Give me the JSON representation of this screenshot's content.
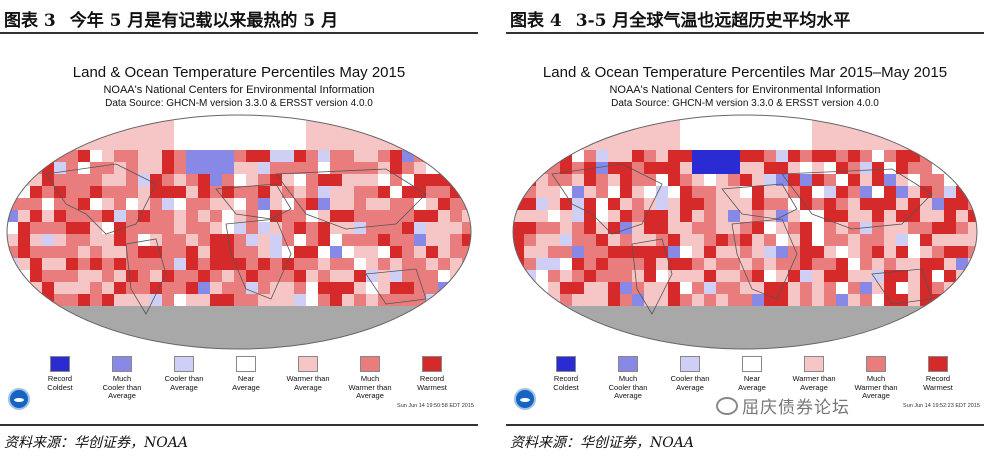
{
  "panels": [
    {
      "caption_num": "图表 3",
      "caption_text": "今年 5 月是有记载以来最热的 5 月",
      "title": "Land & Ocean Temperature Percentiles May 2015",
      "subtitle": "NOAA's National Centers for Environmental Information",
      "source_line": "Data Source: GHCN-M version 3.3.0 & ERSST version 4.0.0",
      "timestamp": "Sun Jun 14 19:50:58 EDT 2015",
      "footer_source": "资料来源：华创证券，NOAA"
    },
    {
      "caption_num": "图表 4",
      "caption_text": "3-5 月全球气温也远超历史平均水平",
      "title": "Land & Ocean Temperature Percentiles Mar 2015–May 2015",
      "subtitle": "NOAA's National Centers for Environmental Information",
      "source_line": "Data Source: GHCN-M version 3.3.0 & ERSST version 4.0.0",
      "timestamp": "Sun Jun 14 19:52:23 EDT 2015",
      "footer_source": "资料来源：华创证券，NOAA"
    }
  ],
  "legend": [
    {
      "label": "Record\nColdest",
      "color": "#2b2bd4"
    },
    {
      "label": "Much\nCooler than\nAverage",
      "color": "#8888e6"
    },
    {
      "label": "Cooler than\nAverage",
      "color": "#cfcff5"
    },
    {
      "label": "Near\nAverage",
      "color": "#ffffff"
    },
    {
      "label": "Warmer than\nAverage",
      "color": "#f6c6c6"
    },
    {
      "label": "Much\nWarmer than\nAverage",
      "color": "#e97d7d"
    },
    {
      "label": "Record\nWarmest",
      "color": "#d62a2a"
    }
  ],
  "colors": {
    "land_outline": "#555555",
    "no_data": "#a8a8a8"
  },
  "watermark": "屈庆债券论坛"
}
